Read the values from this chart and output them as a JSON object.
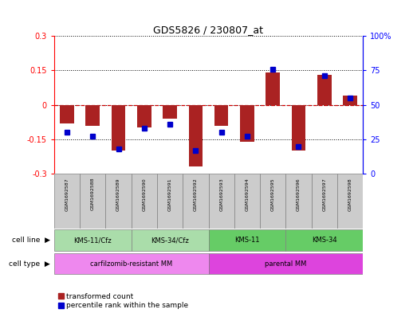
{
  "title": "GDS5826 / 230807_at",
  "samples": [
    "GSM1692587",
    "GSM1692588",
    "GSM1692589",
    "GSM1692590",
    "GSM1692591",
    "GSM1692592",
    "GSM1692593",
    "GSM1692594",
    "GSM1692595",
    "GSM1692596",
    "GSM1692597",
    "GSM1692598"
  ],
  "transformed_count": [
    -0.08,
    -0.09,
    -0.2,
    -0.1,
    -0.06,
    -0.27,
    -0.09,
    -0.16,
    0.14,
    -0.2,
    0.13,
    0.04
  ],
  "percentile_rank": [
    30,
    27,
    18,
    33,
    36,
    17,
    30,
    27,
    76,
    20,
    71,
    55
  ],
  "ylim_left": [
    -0.3,
    0.3
  ],
  "ylim_right": [
    0,
    100
  ],
  "yticks_left": [
    -0.3,
    -0.15,
    0,
    0.15,
    0.3
  ],
  "yticks_right": [
    0,
    25,
    50,
    75,
    100
  ],
  "ytick_labels_left": [
    "-0.3",
    "-0.15",
    "0",
    "0.15",
    "0.3"
  ],
  "ytick_labels_right": [
    "0",
    "25",
    "50",
    "75",
    "100%"
  ],
  "cell_line_groups": [
    {
      "label": "KMS-11/Cfz",
      "start": 0,
      "end": 2,
      "color": "#aaddaa"
    },
    {
      "label": "KMS-34/Cfz",
      "start": 3,
      "end": 5,
      "color": "#aaddaa"
    },
    {
      "label": "KMS-11",
      "start": 6,
      "end": 8,
      "color": "#66cc66"
    },
    {
      "label": "KMS-34",
      "start": 9,
      "end": 11,
      "color": "#66cc66"
    }
  ],
  "cell_type_groups": [
    {
      "label": "carfilzomib-resistant MM",
      "start": 0,
      "end": 5,
      "color": "#ee88ee"
    },
    {
      "label": "parental MM",
      "start": 6,
      "end": 11,
      "color": "#dd44dd"
    }
  ],
  "bar_color": "#AA2222",
  "point_color": "#0000CC",
  "zero_line_color": "#CC0000",
  "grid_color": "#000000",
  "sample_bg_color": "#CCCCCC",
  "bar_width": 0.55,
  "point_size": 4,
  "legend_red_label": "transformed count",
  "legend_blue_label": "percentile rank within the sample"
}
